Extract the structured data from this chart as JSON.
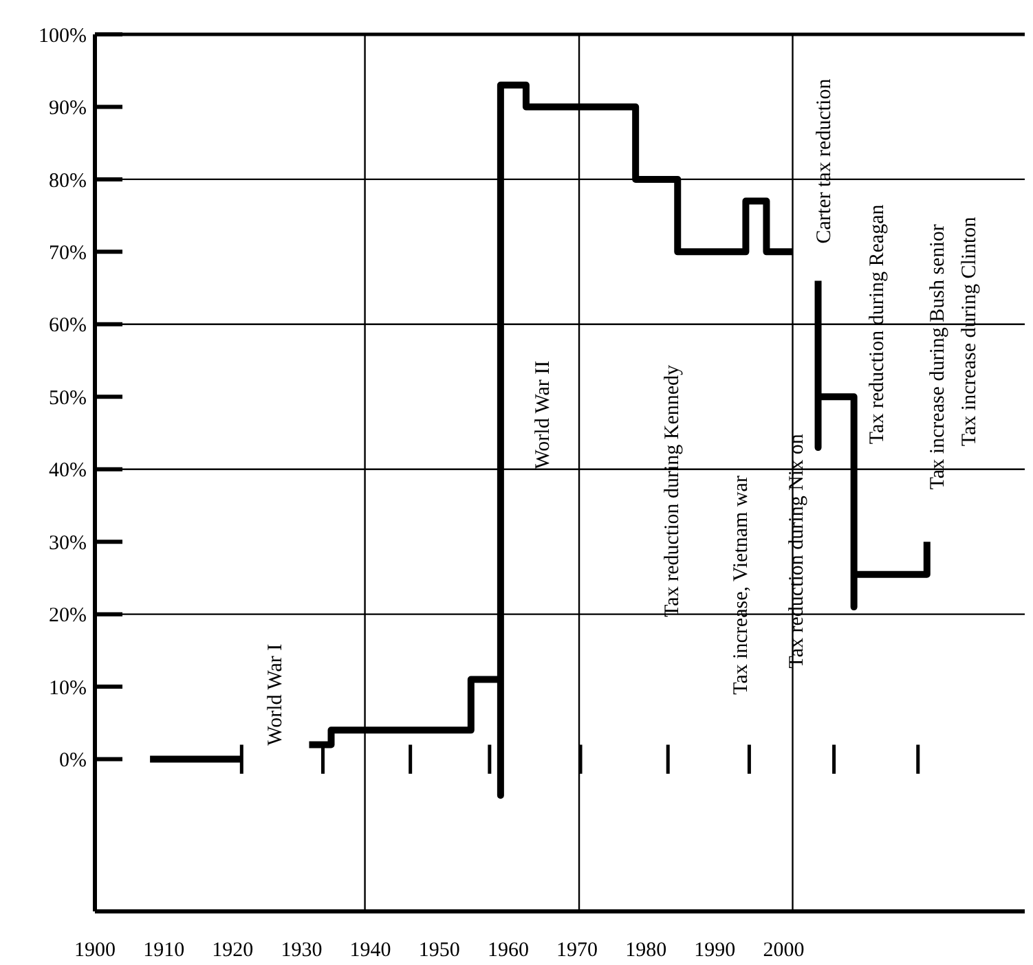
{
  "chart_data": {
    "type": "line",
    "xlim": [
      1900,
      2035
    ],
    "xticks": [
      1900,
      1910,
      1920,
      1930,
      1940,
      1950,
      1960,
      1970,
      1980,
      1990,
      2000
    ],
    "ylim": [
      -21,
      100
    ],
    "yticks": [
      {
        "value": 0,
        "label": "0%"
      },
      {
        "value": 10,
        "label": "10%"
      },
      {
        "value": 20,
        "label": "20%"
      },
      {
        "value": 30,
        "label": "30%"
      },
      {
        "value": 40,
        "label": "40%"
      },
      {
        "value": 50,
        "label": "50%"
      },
      {
        "value": 60,
        "label": "60%"
      },
      {
        "value": 70,
        "label": "70%"
      },
      {
        "value": 80,
        "label": "80%"
      },
      {
        "value": 90,
        "label": "90%"
      },
      {
        "value": 100,
        "label": "100%"
      }
    ],
    "marker": "none",
    "line_style": "solid",
    "series": [
      {
        "color": "#000000",
        "x": [
          1908,
          1921.3,
          1925,
          1931.1,
          1934.3,
          1934.3,
          1954.6,
          1954.6,
          1958.9,
          1958.9,
          1958.9,
          1962.6,
          1962.6,
          1978.5,
          1978.5,
          1984.6,
          1984.6,
          1994.5,
          1994.5,
          1997.5,
          1997.5,
          2001.3,
          2003,
          2005,
          2005,
          2005,
          2010.2,
          2010.2,
          2010.2,
          2020.8,
          2020.8
        ],
        "values": [
          0,
          0,
          null,
          2,
          2,
          4,
          4,
          11,
          11,
          -5,
          93,
          93,
          90,
          90,
          80,
          80,
          70,
          70,
          77,
          77,
          70,
          70,
          null,
          66,
          43,
          50,
          50,
          21,
          25.5,
          25.5,
          30
        ]
      },
      {
        "color": "#000000",
        "x": [
          1921.3,
          1921.3,
          1927,
          1933.1,
          1933.1,
          1940,
          1945.8,
          1945.8,
          1950,
          1957.3,
          1957.3,
          1965,
          1970.5,
          1970.5,
          1975,
          1983.2,
          1983.2,
          1990,
          1995,
          1995,
          2000,
          2007.3,
          2007.3,
          2012,
          2019.5,
          2019.5
        ],
        "values": [
          2,
          -2,
          null,
          2,
          -2,
          null,
          2,
          -2,
          null,
          2,
          -2,
          null,
          2,
          -2,
          null,
          2,
          -2,
          null,
          2,
          -2,
          null,
          2,
          -2,
          null,
          2,
          -2
        ]
      }
    ],
    "ref_lines": [
      {
        "axis": "y",
        "value": 20
      },
      {
        "axis": "y",
        "value": 40
      },
      {
        "axis": "y",
        "value": 60
      },
      {
        "axis": "y",
        "value": 80
      },
      {
        "axis": "y",
        "value": 100
      },
      {
        "axis": "x",
        "value": 1939.2
      },
      {
        "axis": "x",
        "value": 1970.3
      },
      {
        "axis": "x",
        "value": 2001.3
      }
    ],
    "annotations": [
      "World War I",
      "World War II",
      "Tax reduction during Kennedy",
      "Tax increase, Vietnam war",
      "Tax reduction during Nix on",
      "Carter  tax reduction",
      "Tax reduction during Reagan",
      "Tax increase during Bush senior",
      "Tax increase during Clinton"
    ]
  }
}
